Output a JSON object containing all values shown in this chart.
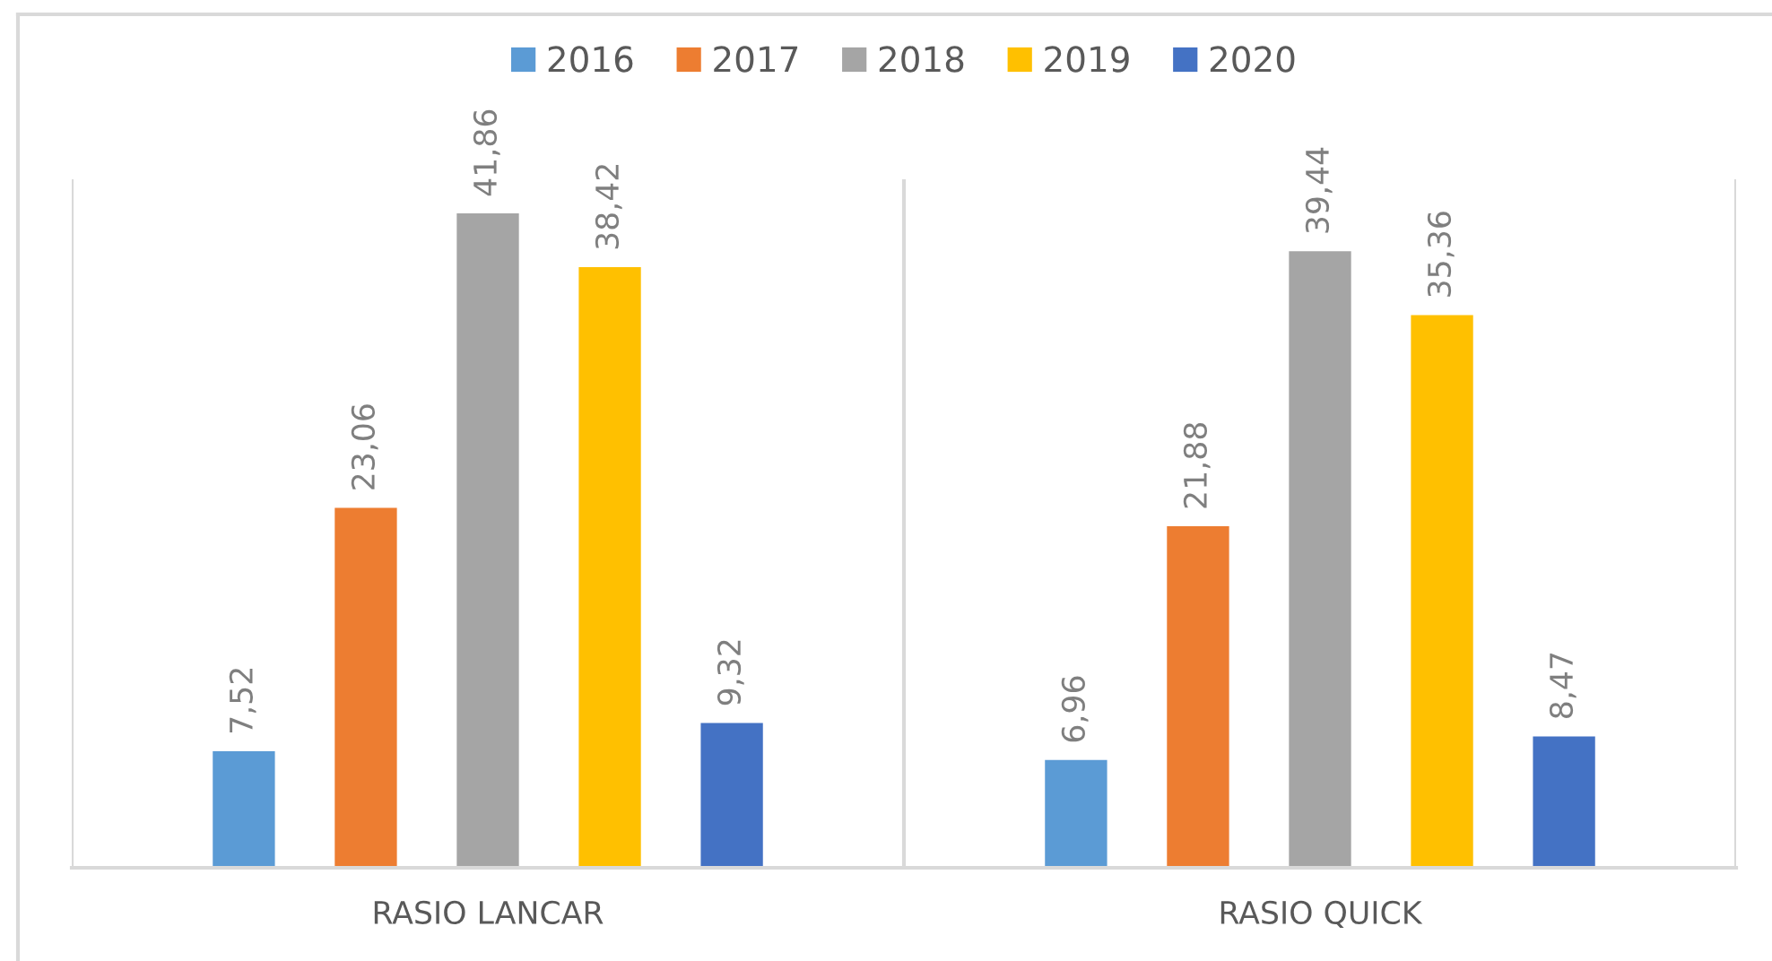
{
  "chart_data": {
    "type": "bar",
    "categories": [
      "RASIO LANCAR",
      "RASIO QUICK"
    ],
    "series": [
      {
        "name": "2016",
        "color": "#5b9bd5",
        "values": [
          7.52,
          6.96
        ],
        "value_labels": [
          "7,52",
          "6,96"
        ]
      },
      {
        "name": "2017",
        "color": "#ed7d31",
        "values": [
          23.06,
          21.88
        ],
        "value_labels": [
          "23,06",
          "21,88"
        ]
      },
      {
        "name": "2018",
        "color": "#a5a5a5",
        "values": [
          41.86,
          39.44
        ],
        "value_labels": [
          "41,86",
          "39,44"
        ]
      },
      {
        "name": "2019",
        "color": "#ffc000",
        "values": [
          38.42,
          35.36
        ],
        "value_labels": [
          "38,42",
          "35,36"
        ]
      },
      {
        "name": "2020",
        "color": "#4472c4",
        "values": [
          9.32,
          8.47
        ],
        "value_labels": [
          "9,32",
          "8,47"
        ]
      }
    ],
    "legend": "top",
    "grid": "x",
    "tick_labels": "x"
  }
}
